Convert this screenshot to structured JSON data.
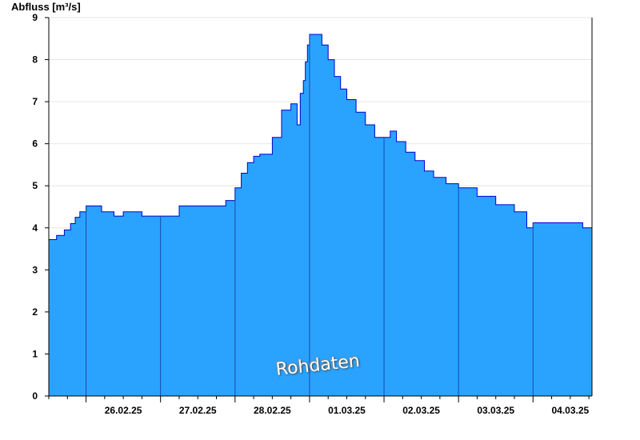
{
  "chart_data": {
    "type": "area",
    "title": "",
    "ylabel": "Abfluss [m³/s]",
    "xlabel": "",
    "ylim": [
      0,
      9
    ],
    "xlim": [
      "2025-02-25T12:00",
      "2025-03-04T19:00"
    ],
    "y_ticks": [
      "0",
      "1",
      "2",
      "3",
      "4",
      "5",
      "6",
      "7",
      "8",
      "9"
    ],
    "x_tick_labels": [
      {
        "label": "26.02.25",
        "date": "2025-02-26T12:00"
      },
      {
        "label": "27.02.25",
        "date": "2025-02-27T12:00"
      },
      {
        "label": "28.02.25",
        "date": "2025-02-28T12:00"
      },
      {
        "label": "01.03.25",
        "date": "2025-03-01T12:00"
      },
      {
        "label": "02.03.25",
        "date": "2025-03-02T12:00"
      },
      {
        "label": "03.03.25",
        "date": "2025-03-03T12:00"
      },
      {
        "label": "04.03.25",
        "date": "2025-03-04T12:00"
      }
    ],
    "day_boundaries": [
      "2025-02-26T00:00",
      "2025-02-27T00:00",
      "2025-02-28T00:00",
      "2025-03-01T00:00",
      "2025-03-02T00:00",
      "2025-03-03T00:00",
      "2025-03-04T00:00"
    ],
    "grid": "horizontal",
    "fill_color": "#29a3ff",
    "line_color": "#0000cc",
    "series": [
      {
        "x": [
          "2025-02-25T12:00",
          "2025-02-25T14:30",
          "2025-02-25T17:00",
          "2025-02-25T19:00",
          "2025-02-25T20:30",
          "2025-02-25T22:00",
          "2025-02-26T00:00",
          "2025-02-26T02:00",
          "2025-02-26T05:00",
          "2025-02-26T09:00",
          "2025-02-26T12:00",
          "2025-02-26T15:00",
          "2025-02-26T18:00",
          "2025-02-27T00:00",
          "2025-02-27T06:00",
          "2025-02-27T12:00",
          "2025-02-27T15:00",
          "2025-02-27T21:00",
          "2025-02-28T00:00",
          "2025-02-28T02:00",
          "2025-02-28T04:00",
          "2025-02-28T06:00",
          "2025-02-28T08:00",
          "2025-02-28T12:00",
          "2025-02-28T15:00",
          "2025-02-28T18:00",
          "2025-02-28T20:00",
          "2025-02-28T21:00",
          "2025-02-28T22:00",
          "2025-02-28T22:40",
          "2025-02-28T23:20",
          "2025-03-01T00:00",
          "2025-03-01T02:00",
          "2025-03-01T04:00",
          "2025-03-01T06:00",
          "2025-03-01T08:00",
          "2025-03-01T10:00",
          "2025-03-01T12:00",
          "2025-03-01T15:00",
          "2025-03-01T18:00",
          "2025-03-01T21:00",
          "2025-03-02T00:00",
          "2025-03-02T02:00",
          "2025-03-02T04:00",
          "2025-03-02T07:00",
          "2025-03-02T10:00",
          "2025-03-02T13:00",
          "2025-03-02T16:00",
          "2025-03-02T20:00",
          "2025-03-03T00:00",
          "2025-03-03T03:00",
          "2025-03-03T06:00",
          "2025-03-03T12:00",
          "2025-03-03T18:00",
          "2025-03-03T22:00",
          "2025-03-04T00:00",
          "2025-03-04T06:00",
          "2025-03-04T12:00",
          "2025-03-04T16:00",
          "2025-03-04T19:00"
        ],
        "y": [
          3.72,
          3.82,
          3.95,
          4.1,
          4.25,
          4.38,
          4.52,
          4.52,
          4.38,
          4.28,
          4.38,
          4.38,
          4.28,
          4.28,
          4.52,
          4.52,
          4.52,
          4.65,
          4.95,
          5.3,
          5.55,
          5.7,
          5.75,
          6.15,
          6.8,
          6.95,
          6.45,
          7.2,
          7.5,
          7.95,
          8.35,
          8.6,
          8.6,
          8.35,
          8.0,
          7.6,
          7.3,
          7.05,
          6.75,
          6.45,
          6.15,
          6.15,
          6.3,
          6.05,
          5.8,
          5.6,
          5.35,
          5.2,
          5.05,
          4.95,
          4.95,
          4.75,
          4.55,
          4.38,
          4.0,
          4.12,
          4.12,
          4.12,
          4.0,
          3.85
        ]
      }
    ],
    "annotation": "Rohdaten"
  }
}
